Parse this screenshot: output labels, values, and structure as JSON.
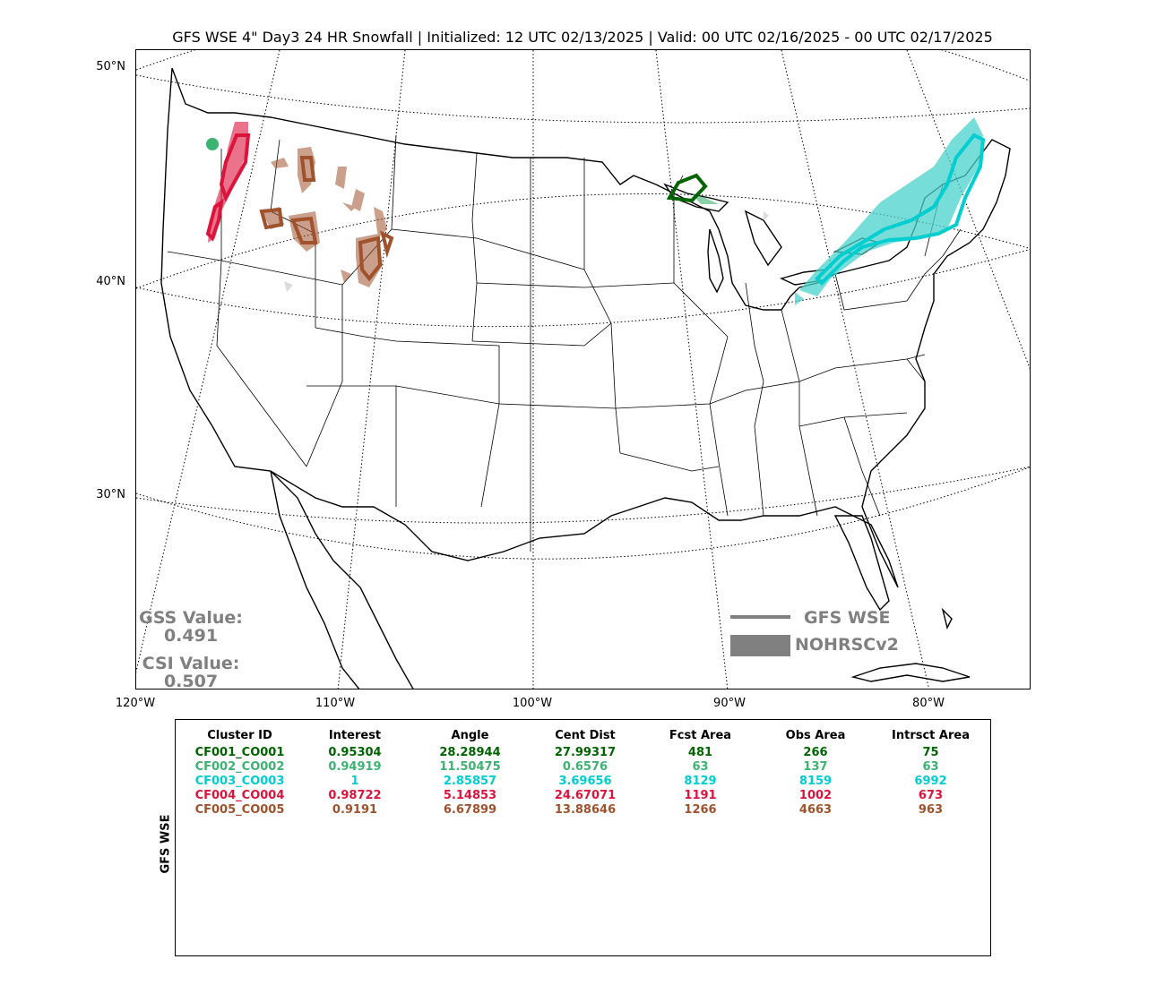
{
  "title": "GFS WSE 4\" Day3 24 HR Snowfall | Initialized: 12 UTC 02/13/2025 | Valid: 00 UTC 02/16/2025 - 00 UTC 02/17/2025",
  "lat_labels": [
    "50°N",
    "40°N",
    "30°N"
  ],
  "lon_labels": [
    "120°W",
    "110°W",
    "100°W",
    "90°W",
    "80°W"
  ],
  "stats": {
    "gss_label": "GSS Value:",
    "gss_value": "0.491",
    "csi_label": "CSI Value:",
    "csi_value": "0.507"
  },
  "legend": {
    "forecast_label": "GFS WSE",
    "observed_label": "NOHRSCv2",
    "color": "#808080"
  },
  "table": {
    "side_label": "GFS WSE",
    "headers": [
      "Cluster ID",
      "Interest",
      "Angle",
      "Cent Dist",
      "Fcst Area",
      "Obs Area",
      "Intrsct Area"
    ],
    "rows": [
      {
        "color": "#006400",
        "cells": [
          "CF001_CO001",
          "0.95304",
          "28.28944",
          "27.99317",
          "481",
          "266",
          "75"
        ]
      },
      {
        "color": "#3cb371",
        "cells": [
          "CF002_CO002",
          "0.94919",
          "11.50475",
          "0.6576",
          "63",
          "137",
          "63"
        ]
      },
      {
        "color": "#00ced1",
        "cells": [
          "CF003_CO003",
          "1",
          "2.85857",
          "3.69656",
          "8129",
          "8159",
          "6992"
        ]
      },
      {
        "color": "#dc143c",
        "cells": [
          "CF004_CO004",
          "0.98722",
          "5.14853",
          "24.67071",
          "1191",
          "1002",
          "673"
        ]
      },
      {
        "color": "#a0522d",
        "cells": [
          "CF005_CO005",
          "0.9191",
          "6.67899",
          "13.88646",
          "1266",
          "4663",
          "963"
        ]
      }
    ]
  },
  "map_features": {
    "clusters": [
      {
        "id": "CF001_CO001",
        "color": "#006400",
        "region": "upper-michigan"
      },
      {
        "id": "CF002_CO002",
        "color": "#3cb371",
        "region": "olympic-peninsula"
      },
      {
        "id": "CF003_CO003",
        "color": "#00ced1",
        "region": "northeast"
      },
      {
        "id": "CF004_CO004",
        "color": "#dc143c",
        "region": "cascades"
      },
      {
        "id": "CF005_CO005",
        "color": "#a0522d",
        "region": "northern-rockies"
      }
    ]
  }
}
